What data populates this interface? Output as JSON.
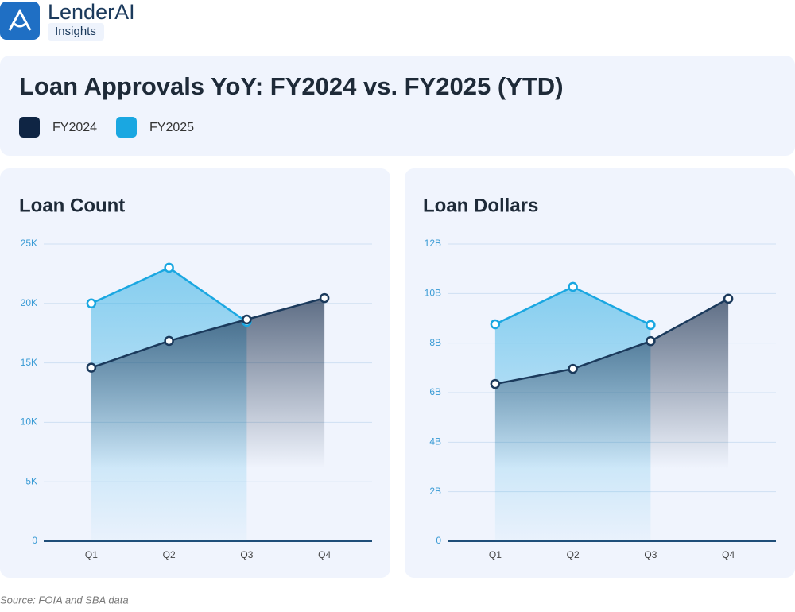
{
  "header": {
    "brand": "LenderAI",
    "tag": "Insights"
  },
  "title": "Loan Approvals YoY: FY2024 vs. FY2025 (YTD)",
  "chart_data": [
    {
      "type": "area",
      "title": "Loan Count",
      "categories": [
        "Q1",
        "Q2",
        "Q3",
        "Q4"
      ],
      "series": [
        {
          "name": "FY2024",
          "color": "#0f2544",
          "values": [
            14600,
            16850,
            18650,
            20450
          ]
        },
        {
          "name": "FY2025",
          "color": "#1aa7e1",
          "values": [
            20000,
            23000,
            18450,
            null
          ]
        }
      ],
      "ylim": [
        0,
        25000
      ],
      "yticks": [
        0,
        {
          "value": 5000,
          "label": "5K"
        },
        {
          "value": 10000,
          "label": "10K"
        },
        {
          "value": 15000,
          "label": "15K"
        },
        {
          "value": 20000,
          "label": "20K"
        },
        {
          "value": 25000,
          "label": "25K"
        }
      ],
      "grid": true
    },
    {
      "type": "area",
      "title": "Loan Dollars",
      "categories": [
        "Q1",
        "Q2",
        "Q3",
        "Q4"
      ],
      "series": [
        {
          "color": "#0f2544",
          "values": [
            6350000000,
            6960000000,
            8080000000,
            9790000000
          ]
        },
        {
          "color": "#1aa7e1",
          "values": [
            8760000000,
            10270000000,
            8730000000,
            null
          ]
        }
      ],
      "ylim": [
        0,
        12000000000
      ],
      "yticks": [
        0,
        {
          "value": 2000000000,
          "label": "2B"
        },
        {
          "value": 4000000000,
          "label": "4B"
        },
        {
          "value": 6000000000,
          "label": "6B"
        },
        {
          "value": 8000000000,
          "label": "8B"
        },
        {
          "value": 10000000000,
          "label": "10B"
        },
        {
          "value": 12000000000,
          "label": "12B"
        }
      ],
      "grid": true
    }
  ],
  "source": "Source: FOIA and SBA data"
}
